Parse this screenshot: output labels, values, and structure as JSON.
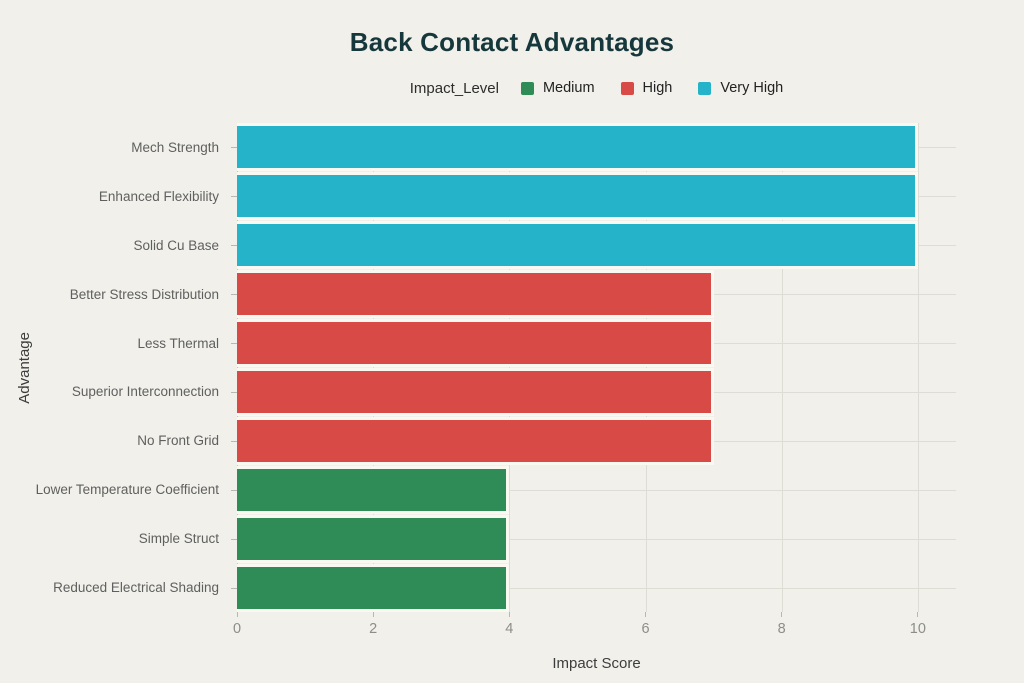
{
  "page": {
    "background_color": "#f1f0ea"
  },
  "chart_data": {
    "type": "bar",
    "orientation": "horizontal",
    "title": "Back Contact Advantages",
    "xlabel": "Impact Score",
    "ylabel": "Advantage",
    "legend_title": "Impact_Level",
    "legend_position": "top-center",
    "grid": true,
    "xlim": [
      0,
      10.56
    ],
    "xticks": [
      0,
      2,
      4,
      6,
      8,
      10
    ],
    "groups": [
      {
        "name": "Medium",
        "color": "#2f8c57"
      },
      {
        "name": "High",
        "color": "#d74a45"
      },
      {
        "name": "Very High",
        "color": "#24b3c9"
      }
    ],
    "categories": [
      "Mech Strength",
      "Enhanced Flexibility",
      "Solid Cu Base",
      "Better Stress Distribution",
      "Less Thermal",
      "Superior Interconnection",
      "No Front Grid",
      "Lower Temperature Coefficient",
      "Simple Struct",
      "Reduced Electrical Shading"
    ],
    "values": [
      10,
      10,
      10,
      7,
      7,
      7,
      7,
      4,
      4,
      4
    ],
    "levels": [
      "Very High",
      "Very High",
      "Very High",
      "High",
      "High",
      "High",
      "High",
      "Medium",
      "Medium",
      "Medium"
    ],
    "colors": {
      "title": "#16383c",
      "gridline": "#dddcd5",
      "axis_line": "#c5c4bd",
      "tick": "#b8b7b0",
      "bar_border": "#f9f9f2",
      "y_label_text": "#5f5f5f",
      "x_tick_text": "#8e8e88",
      "axis_title_text": "#3d3d3d"
    }
  }
}
